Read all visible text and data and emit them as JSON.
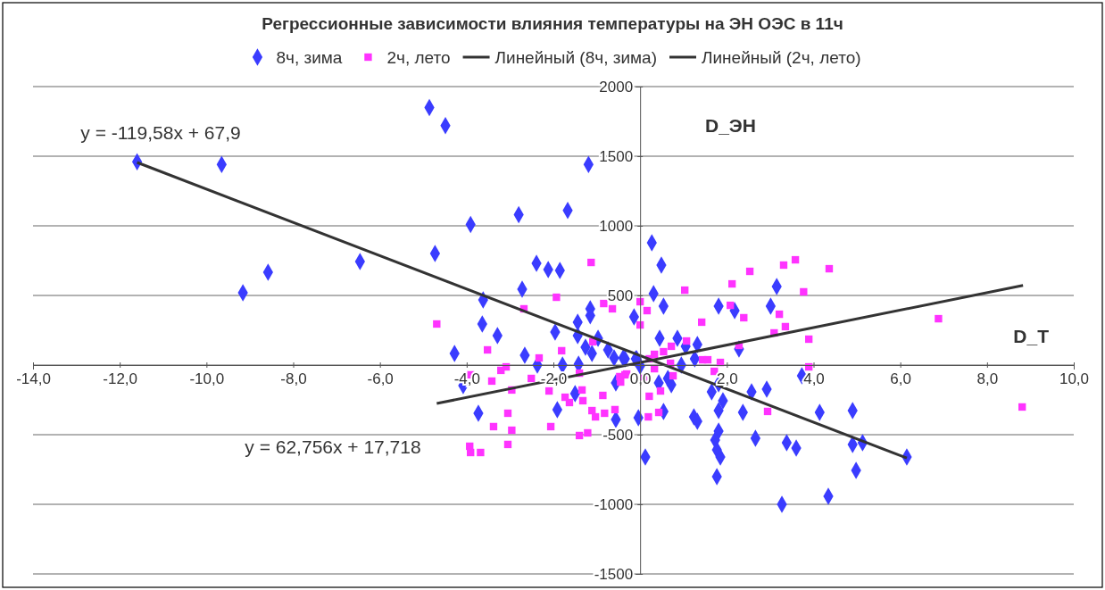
{
  "chart_data": {
    "type": "scatter",
    "title": "Регрессионные зависимости влияния температуры на ЭН ОЭС в 11ч",
    "xlabel": "D_T",
    "ylabel": "D_ЭН",
    "legend": "top",
    "grid": "y",
    "xlim": [
      -14,
      10
    ],
    "ylim": [
      -1500,
      2000
    ],
    "xticks": [
      {
        "value": -14,
        "label": "-14,0"
      },
      {
        "value": -12,
        "label": "-12,0"
      },
      {
        "value": -10,
        "label": "-10,0"
      },
      {
        "value": -8,
        "label": "-8,0"
      },
      {
        "value": -6,
        "label": "-6,0"
      },
      {
        "value": -4,
        "label": "-4,0"
      },
      {
        "value": -2,
        "label": "-2,0"
      },
      {
        "value": 0,
        "label": "0,0"
      },
      {
        "value": 2,
        "label": "2,0"
      },
      {
        "value": 4,
        "label": "4,0"
      },
      {
        "value": 6,
        "label": "6,0"
      },
      {
        "value": 8,
        "label": "8,0"
      },
      {
        "value": 10,
        "label": "10,0"
      }
    ],
    "yticks": [
      -1500,
      -1000,
      -500,
      {
        "value": 0,
        "label": null
      },
      500,
      1000,
      1500,
      2000
    ],
    "annotations": [
      "y = -119,58x + 67,9",
      "y = 62,756x + 17,718"
    ],
    "series": [
      {
        "name": "8ч, зима",
        "marker": "diamond",
        "color": "#3a3cff",
        "x": [
          -11.6,
          -9.65,
          -8.58,
          -9.16,
          -6.46,
          -4.86,
          -4.49,
          -4.73,
          -3.91,
          -2.8,
          -1.67,
          -1.19,
          -2.39,
          -2.12,
          -1.85,
          -2.72,
          -3.62,
          -3.64,
          -3.29,
          -4.28,
          -2.66,
          -2.37,
          -1.79,
          -1.42,
          -1.44,
          -1.96,
          -1.15,
          -1.15,
          -1.44,
          -1.26,
          -1.11,
          -0.97,
          -0.74,
          -0.6,
          -0.39,
          -0.14,
          -0.1,
          0,
          -4.08,
          -3.73,
          -1.91,
          -1.5,
          -0.56,
          -0.56,
          -0.04,
          0.27,
          0.49,
          0.31,
          0.54,
          0.45,
          0.86,
          1.05,
          1.32,
          1.26,
          0.95,
          -0.35,
          -0.08,
          1.81,
          2.18,
          3.15,
          3.01,
          2.28,
          0.64,
          0.72,
          0.43,
          1.81,
          1.65,
          1.91,
          2.57,
          2.92,
          3.73,
          0.54,
          1.24,
          1.32,
          1.81,
          2.37,
          4.14,
          1.81,
          1.73,
          2.66,
          3.38,
          3.6,
          1.77,
          1.85,
          0.12,
          4.9,
          4.9,
          5.13,
          4.98,
          1.77,
          3.27,
          4.34,
          6.15
        ],
        "values": [
          1460,
          1440,
          667,
          519,
          744,
          1850,
          1720,
          801,
          1010,
          1080,
          1110,
          1440,
          731,
          686,
          680,
          545,
          468,
          295,
          212,
          83,
          70,
          0,
          0,
          6,
          308,
          237,
          404,
          355,
          212,
          128,
          83,
          192,
          109,
          51,
          51,
          346,
          45,
          -6,
          -147,
          -346,
          -320,
          -205,
          -128,
          -391,
          -378,
          878,
          718,
          513,
          423,
          192,
          192,
          135,
          147,
          45,
          0,
          45,
          45,
          423,
          391,
          564,
          423,
          115,
          -96,
          -141,
          -128,
          -135,
          -192,
          -256,
          -192,
          -173,
          -77,
          -333,
          -372,
          -404,
          -327,
          -340,
          -340,
          -474,
          -538,
          -526,
          -558,
          -596,
          -609,
          -660,
          -660,
          -327,
          -570,
          -558,
          -756,
          -801,
          -1000,
          -942,
          -660
        ]
      },
      {
        "name": "2ч, лето",
        "marker": "square",
        "color": "#ff33ff",
        "x": [
          -4.69,
          -1.13,
          -1.93,
          -2.68,
          -0.84,
          -0.64,
          0,
          0,
          -1.09,
          -3.52,
          -1.81,
          -2.33,
          -3.09,
          -3.21,
          -3.91,
          -3.42,
          -2.51,
          -1.4,
          -2.96,
          -1.34,
          -2.1,
          -1.73,
          -1.63,
          -1.32,
          -0.86,
          -0.47,
          -0.35,
          -0.45,
          -1.11,
          -1.03,
          -0.82,
          -0.58,
          -3.05,
          -3.38,
          -2.96,
          -2.06,
          -3.05,
          -1.4,
          -1.21,
          -3.93,
          -3.91,
          -3.68,
          0.16,
          1.03,
          2.08,
          2.12,
          2.53,
          3.31,
          3.58,
          4.36,
          3.77,
          3.21,
          2.39,
          3.35,
          3.09,
          3.89,
          3.89,
          1.42,
          2.28,
          1.07,
          0.72,
          0.54,
          0.33,
          0.21,
          0.7,
          1.44,
          1.56,
          1.85,
          1.71,
          0.33,
          0.1,
          -0.31,
          0.76,
          0.47,
          0.21,
          0.43,
          0.19,
          2.94,
          8.81,
          6.88
        ],
        "values": [
          295,
          737,
          487,
          404,
          442,
          404,
          455,
          288,
          167,
          109,
          103,
          51,
          -13,
          -38,
          -70,
          -115,
          -96,
          -58,
          -179,
          -179,
          -186,
          -231,
          -269,
          -256,
          -218,
          -83,
          -70,
          -122,
          -327,
          -372,
          -346,
          -320,
          -346,
          -442,
          -468,
          -442,
          -570,
          -506,
          -487,
          -583,
          -628,
          -628,
          391,
          538,
          429,
          583,
          673,
          718,
          756,
          692,
          526,
          365,
          340,
          276,
          231,
          186,
          -13,
          308,
          141,
          173,
          135,
          96,
          77,
          45,
          13,
          38,
          38,
          19,
          -45,
          -26,
          -96,
          -64,
          -77,
          -186,
          -224,
          -340,
          -372,
          -333,
          -301,
          333
        ]
      },
      {
        "name": "Линейный (8ч, зима)",
        "type": "line",
        "color": "#333333",
        "x": [
          -11.6,
          6.15
        ],
        "values": [
          1455,
          -668
        ]
      },
      {
        "name": "Линейный (2ч, лето)",
        "type": "line",
        "color": "#333333",
        "x": [
          -4.69,
          8.83
        ],
        "values": [
          -276,
          572
        ]
      }
    ]
  }
}
